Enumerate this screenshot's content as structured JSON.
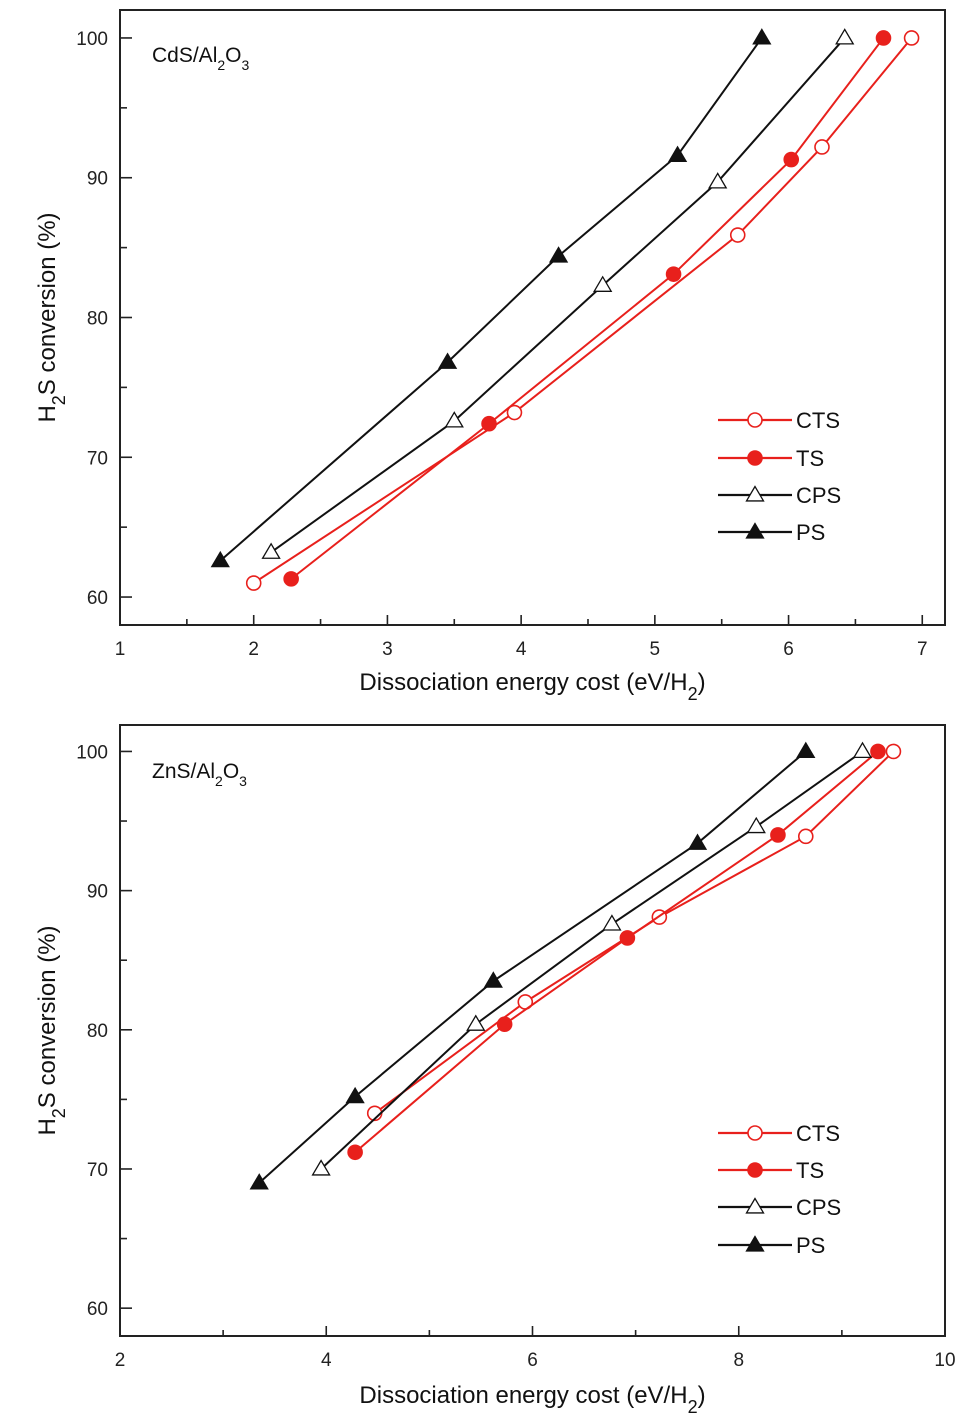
{
  "chart_data": [
    {
      "type": "line",
      "annotation_parts": [
        "CdS/Al",
        "2",
        "O",
        "3"
      ],
      "xlabel_parts": [
        "Dissociation energy cost (eV/H",
        "2",
        ")"
      ],
      "ylabel_parts": [
        "H",
        "2",
        "S conversion (%)"
      ],
      "xlim": [
        1,
        7.17
      ],
      "ylim": [
        58,
        102
      ],
      "xticks": [
        1,
        2,
        3,
        4,
        5,
        6,
        7
      ],
      "xminor": 0.5,
      "yticks": [
        60,
        70,
        80,
        90,
        100
      ],
      "yminor": 5,
      "grid": false,
      "legend_position": "bottom-right",
      "series": [
        {
          "name": "CTS",
          "color": "#e8201c",
          "marker": "open-circle",
          "x": [
            2.0,
            3.95,
            5.62,
            6.25,
            6.92
          ],
          "y": [
            61.0,
            73.2,
            85.9,
            92.2,
            100
          ]
        },
        {
          "name": "TS",
          "color": "#e8201c",
          "marker": "filled-circle",
          "x": [
            2.28,
            3.76,
            5.14,
            6.02,
            6.71
          ],
          "y": [
            61.3,
            72.4,
            83.1,
            91.3,
            100
          ]
        },
        {
          "name": "CPS",
          "color": "#111111",
          "marker": "open-triangle",
          "x": [
            2.13,
            3.5,
            4.61,
            5.47,
            6.42
          ],
          "y": [
            63.2,
            72.6,
            82.3,
            89.7,
            100
          ]
        },
        {
          "name": "PS",
          "color": "#111111",
          "marker": "filled-triangle",
          "x": [
            1.75,
            3.45,
            4.28,
            5.17,
            5.8
          ],
          "y": [
            62.6,
            76.8,
            84.4,
            91.6,
            100
          ]
        }
      ]
    },
    {
      "type": "line",
      "annotation_parts": [
        "ZnS/Al",
        "2",
        "O",
        "3"
      ],
      "xlabel_parts": [
        "Dissociation energy cost (eV/H",
        "2",
        ")"
      ],
      "ylabel_parts": [
        "H",
        "2",
        "S conversion (%)"
      ],
      "xlim": [
        2,
        10
      ],
      "ylim": [
        58,
        101.9
      ],
      "xticks": [
        2,
        4,
        6,
        8,
        10
      ],
      "xminor": 1,
      "yticks": [
        60,
        70,
        80,
        90,
        100
      ],
      "yminor": 5,
      "grid": false,
      "legend_position": "bottom-right",
      "series": [
        {
          "name": "CTS",
          "color": "#e8201c",
          "marker": "open-circle",
          "x": [
            4.47,
            5.93,
            7.23,
            8.65,
            9.5
          ],
          "y": [
            74.0,
            82.0,
            88.1,
            93.9,
            100
          ]
        },
        {
          "name": "TS",
          "color": "#e8201c",
          "marker": "filled-circle",
          "x": [
            4.28,
            5.73,
            6.92,
            8.38,
            9.35
          ],
          "y": [
            71.2,
            80.4,
            86.6,
            94.0,
            100
          ]
        },
        {
          "name": "CPS",
          "color": "#111111",
          "marker": "open-triangle",
          "x": [
            3.95,
            5.45,
            6.77,
            8.17,
            9.2
          ],
          "y": [
            70.0,
            80.4,
            87.6,
            94.6,
            100
          ]
        },
        {
          "name": "PS",
          "color": "#111111",
          "marker": "filled-triangle",
          "x": [
            3.35,
            4.28,
            5.62,
            7.6,
            8.65
          ],
          "y": [
            69.0,
            75.2,
            83.5,
            93.4,
            100
          ]
        }
      ]
    }
  ]
}
